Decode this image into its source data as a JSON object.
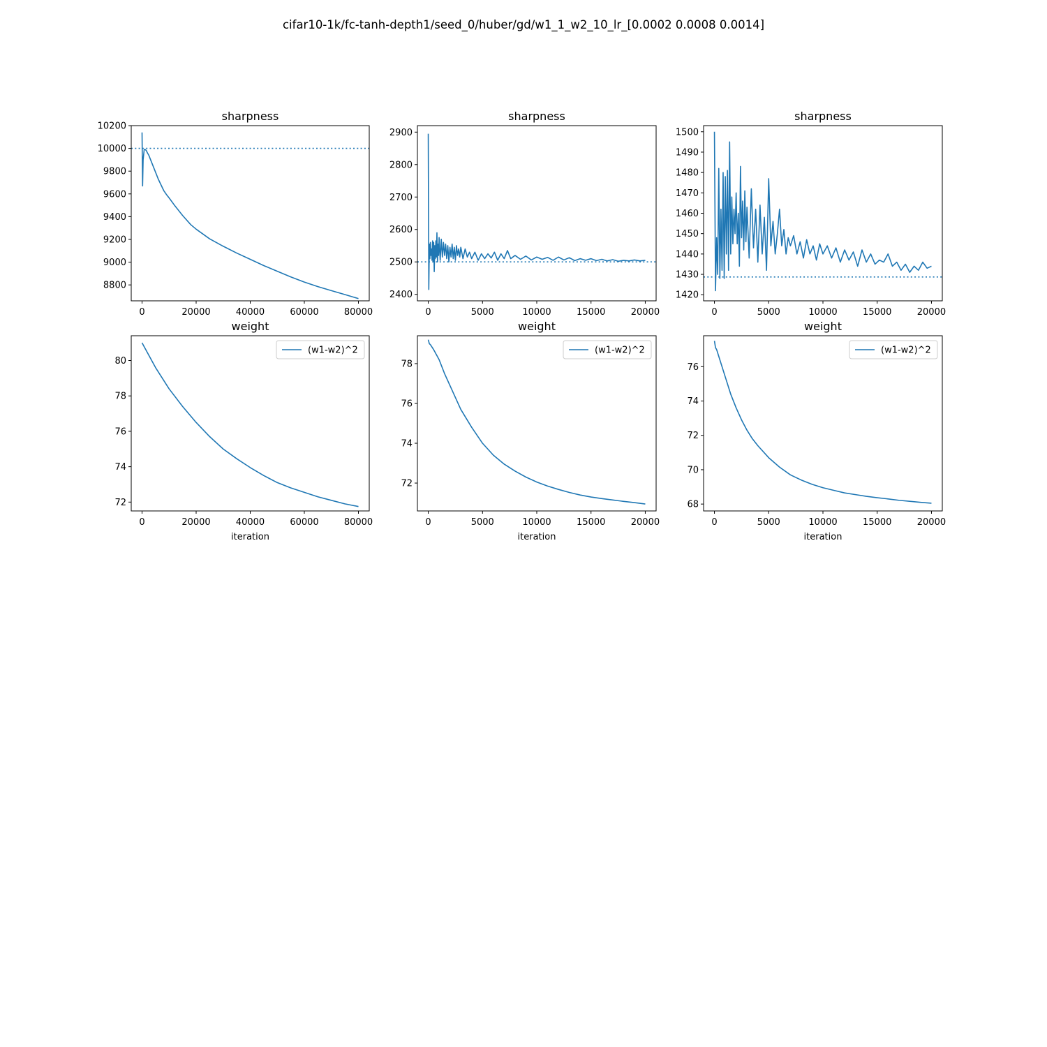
{
  "figure": {
    "title": "cifar10-1k/fc-tanh-depth1/seed_0/huber/gd/w1_1_w2_10_lr_[0.0002 0.0008 0.0014]",
    "line_color": "#1f77b4"
  },
  "chart_data": [
    {
      "type": "line",
      "title": "sharpness",
      "xlabel": "",
      "ylabel": "",
      "xlim": [
        -4000,
        84000
      ],
      "ylim": [
        8660,
        10200
      ],
      "xticks": [
        0,
        20000,
        40000,
        60000,
        80000
      ],
      "yticks": [
        8800,
        9000,
        9200,
        9400,
        9600,
        9800,
        10000,
        10200
      ],
      "hline": 10000,
      "series": [
        {
          "x": [
            0,
            200,
            400,
            800,
            1200,
            1600,
            2000,
            2500,
            3000,
            4000,
            5000,
            6000,
            7000,
            8000,
            9000,
            10000,
            12000,
            15000,
            18000,
            20000,
            25000,
            30000,
            35000,
            40000,
            45000,
            50000,
            55000,
            60000,
            65000,
            70000,
            75000,
            80000
          ],
          "y": [
            10140,
            9670,
            9900,
            9990,
            9990,
            9980,
            9960,
            9940,
            9910,
            9850,
            9790,
            9730,
            9680,
            9630,
            9595,
            9565,
            9500,
            9410,
            9330,
            9290,
            9205,
            9140,
            9080,
            9025,
            8970,
            8920,
            8870,
            8825,
            8785,
            8750,
            8715,
            8680
          ]
        }
      ]
    },
    {
      "type": "line",
      "title": "sharpness",
      "xlabel": "",
      "ylabel": "",
      "xlim": [
        -1000,
        21000
      ],
      "ylim": [
        2380,
        2920
      ],
      "xticks": [
        0,
        5000,
        10000,
        15000,
        20000
      ],
      "yticks": [
        2400,
        2500,
        2600,
        2700,
        2800,
        2900
      ],
      "hline": 2500,
      "series": [
        {
          "x": [
            0,
            50,
            100,
            150,
            200,
            250,
            300,
            350,
            400,
            450,
            500,
            550,
            600,
            650,
            700,
            750,
            800,
            850,
            900,
            950,
            1000,
            1100,
            1200,
            1300,
            1400,
            1500,
            1600,
            1700,
            1800,
            1900,
            2000,
            2100,
            2200,
            2300,
            2400,
            2500,
            2600,
            2700,
            2800,
            2900,
            3000,
            3200,
            3400,
            3600,
            3800,
            4000,
            4300,
            4600,
            4900,
            5200,
            5500,
            5800,
            6100,
            6400,
            6700,
            7000,
            7300,
            7600,
            8000,
            8500,
            9000,
            9500,
            10000,
            10500,
            11000,
            11500,
            12000,
            12500,
            13000,
            13500,
            14000,
            14500,
            15000,
            15500,
            16000,
            16500,
            17000,
            17500,
            18000,
            18500,
            19000,
            19500,
            20000
          ],
          "y": [
            2895,
            2415,
            2555,
            2510,
            2560,
            2520,
            2540,
            2505,
            2565,
            2500,
            2560,
            2470,
            2550,
            2510,
            2565,
            2515,
            2590,
            2500,
            2555,
            2520,
            2575,
            2505,
            2570,
            2515,
            2560,
            2520,
            2555,
            2510,
            2550,
            2500,
            2545,
            2515,
            2555,
            2510,
            2545,
            2505,
            2550,
            2520,
            2540,
            2515,
            2545,
            2510,
            2540,
            2515,
            2530,
            2510,
            2530,
            2505,
            2525,
            2510,
            2525,
            2512,
            2530,
            2505,
            2525,
            2510,
            2535,
            2510,
            2520,
            2508,
            2518,
            2506,
            2515,
            2508,
            2514,
            2505,
            2515,
            2506,
            2513,
            2504,
            2510,
            2505,
            2510,
            2504,
            2508,
            2503,
            2507,
            2502,
            2505,
            2503,
            2506,
            2503,
            2505
          ]
        }
      ]
    },
    {
      "type": "line",
      "title": "sharpness",
      "xlabel": "",
      "ylabel": "",
      "xlim": [
        -1000,
        21000
      ],
      "ylim": [
        1417,
        1503
      ],
      "xticks": [
        0,
        5000,
        10000,
        15000,
        20000
      ],
      "yticks": [
        1420,
        1430,
        1440,
        1450,
        1460,
        1470,
        1480,
        1490,
        1500
      ],
      "hline": 1428.7,
      "series": [
        {
          "x": [
            0,
            100,
            200,
            300,
            400,
            500,
            600,
            700,
            800,
            900,
            1000,
            1100,
            1200,
            1300,
            1400,
            1500,
            1600,
            1700,
            1800,
            1900,
            2000,
            2100,
            2200,
            2300,
            2400,
            2500,
            2600,
            2700,
            2800,
            2900,
            3000,
            3200,
            3400,
            3600,
            3800,
            4000,
            4200,
            4400,
            4600,
            4800,
            5000,
            5200,
            5400,
            5600,
            5800,
            6000,
            6200,
            6400,
            6600,
            6800,
            7000,
            7300,
            7600,
            7900,
            8200,
            8500,
            8800,
            9100,
            9400,
            9700,
            10000,
            10400,
            10800,
            11200,
            11600,
            12000,
            12400,
            12800,
            13200,
            13600,
            14000,
            14400,
            14800,
            15200,
            15600,
            16000,
            16400,
            16800,
            17200,
            17600,
            18000,
            18400,
            18800,
            19200,
            19600,
            20000
          ],
          "y": [
            1500,
            1422,
            1448,
            1430,
            1482,
            1428,
            1462,
            1432,
            1480,
            1428,
            1478,
            1440,
            1481,
            1432,
            1495,
            1440,
            1468,
            1445,
            1462,
            1450,
            1470,
            1445,
            1460,
            1434,
            1483,
            1448,
            1466,
            1442,
            1471,
            1446,
            1463,
            1438,
            1472,
            1443,
            1462,
            1436,
            1464,
            1440,
            1458,
            1432,
            1477,
            1444,
            1456,
            1440,
            1450,
            1462,
            1444,
            1452,
            1440,
            1448,
            1444,
            1449,
            1440,
            1446,
            1438,
            1447,
            1440,
            1444,
            1437,
            1445,
            1440,
            1444,
            1438,
            1443,
            1436,
            1442,
            1437,
            1441,
            1434,
            1442,
            1436,
            1440,
            1435,
            1437,
            1436,
            1440,
            1434,
            1436,
            1432,
            1435,
            1431,
            1434,
            1432,
            1436,
            1433,
            1434
          ]
        }
      ]
    },
    {
      "type": "line",
      "title": "weight",
      "xlabel": "iteration",
      "ylabel": "",
      "xlim": [
        -4000,
        84000
      ],
      "ylim": [
        71.5,
        81.4
      ],
      "xticks": [
        0,
        20000,
        40000,
        60000,
        80000
      ],
      "yticks": [
        72,
        74,
        76,
        78,
        80
      ],
      "legend": {
        "label": "(w1-w2)^2",
        "loc": "upper right"
      },
      "series": [
        {
          "name": "(w1-w2)^2",
          "x": [
            0,
            5000,
            10000,
            15000,
            20000,
            25000,
            30000,
            35000,
            40000,
            45000,
            50000,
            55000,
            60000,
            65000,
            70000,
            75000,
            80000
          ],
          "y": [
            81.0,
            79.6,
            78.4,
            77.4,
            76.5,
            75.7,
            75.0,
            74.45,
            73.95,
            73.5,
            73.1,
            72.8,
            72.55,
            72.3,
            72.1,
            71.9,
            71.75
          ]
        }
      ]
    },
    {
      "type": "line",
      "title": "weight",
      "xlabel": "iteration",
      "ylabel": "",
      "xlim": [
        -1000,
        21000
      ],
      "ylim": [
        70.6,
        79.4
      ],
      "xticks": [
        0,
        5000,
        10000,
        15000,
        20000
      ],
      "yticks": [
        72,
        74,
        76,
        78
      ],
      "legend": {
        "label": "(w1-w2)^2",
        "loc": "upper right"
      },
      "series": [
        {
          "name": "(w1-w2)^2",
          "x": [
            0,
            100,
            200,
            500,
            1000,
            1500,
            2000,
            3000,
            4000,
            5000,
            6000,
            7000,
            8000,
            9000,
            10000,
            11000,
            12000,
            13000,
            14000,
            15000,
            16000,
            17000,
            18000,
            19000,
            20000
          ],
          "y": [
            79.2,
            79.0,
            78.95,
            78.7,
            78.2,
            77.5,
            76.9,
            75.7,
            74.8,
            74.0,
            73.4,
            72.95,
            72.6,
            72.3,
            72.05,
            71.85,
            71.68,
            71.53,
            71.4,
            71.3,
            71.22,
            71.15,
            71.08,
            71.02,
            70.95
          ]
        }
      ]
    },
    {
      "type": "line",
      "title": "weight",
      "xlabel": "iteration",
      "ylabel": "",
      "xlim": [
        -1000,
        21000
      ],
      "ylim": [
        67.6,
        77.8
      ],
      "xticks": [
        0,
        5000,
        10000,
        15000,
        20000
      ],
      "yticks": [
        68,
        70,
        72,
        74,
        76
      ],
      "legend": {
        "label": "(w1-w2)^2",
        "loc": "upper right"
      },
      "series": [
        {
          "name": "(w1-w2)^2",
          "x": [
            0,
            100,
            200,
            500,
            1000,
            1500,
            2000,
            2500,
            3000,
            3500,
            4000,
            5000,
            6000,
            7000,
            8000,
            9000,
            10000,
            11000,
            12000,
            13000,
            14000,
            15000,
            16000,
            17000,
            18000,
            19000,
            20000
          ],
          "y": [
            77.5,
            77.1,
            77.0,
            76.4,
            75.4,
            74.4,
            73.6,
            72.9,
            72.3,
            71.8,
            71.4,
            70.7,
            70.15,
            69.7,
            69.4,
            69.15,
            68.95,
            68.8,
            68.65,
            68.55,
            68.45,
            68.37,
            68.3,
            68.22,
            68.16,
            68.1,
            68.05
          ]
        }
      ]
    }
  ]
}
